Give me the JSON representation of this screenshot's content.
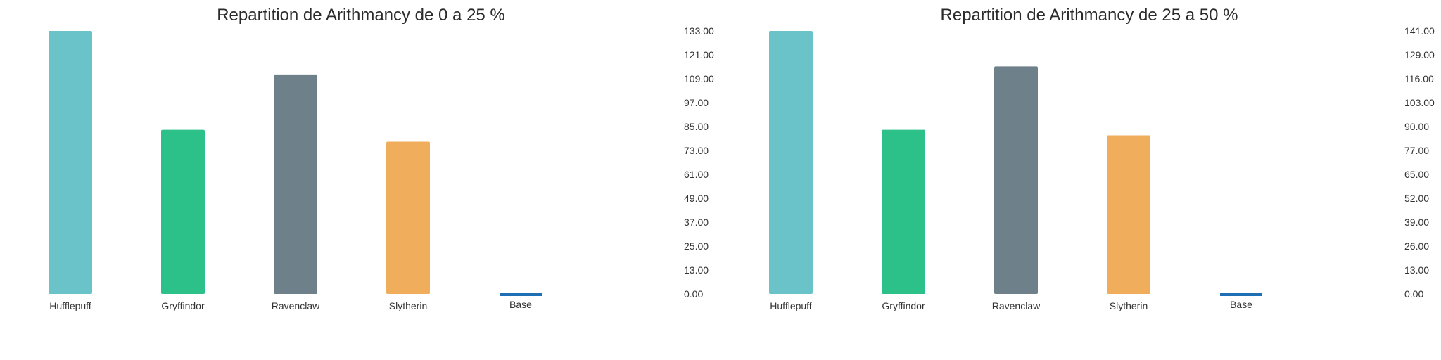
{
  "chart_data": [
    {
      "type": "bar",
      "title": "Repartition de Arithmancy de 0 a 25 %",
      "categories": [
        "Hufflepuff",
        "Gryffindor",
        "Ravenclaw",
        "Slytherin",
        "Base"
      ],
      "values": [
        133,
        83,
        111,
        77,
        0
      ],
      "colors": [
        "#69c3c9",
        "#2bc188",
        "#6e808a",
        "#f0ad5b",
        "#1f6fb5"
      ],
      "ylim": [
        0,
        133
      ],
      "y_ticks": [
        "0.00",
        "13.00",
        "25.00",
        "37.00",
        "49.00",
        "61.00",
        "73.00",
        "85.00",
        "97.00",
        "109.00",
        "121.00",
        "133.00"
      ],
      "y_axis_position": "right",
      "grid": false,
      "legend": false
    },
    {
      "type": "bar",
      "title": "Repartition de Arithmancy de 25 a 50 %",
      "categories": [
        "Hufflepuff",
        "Gryffindor",
        "Ravenclaw",
        "Slytherin",
        "Base"
      ],
      "values": [
        141,
        88,
        122,
        85,
        0
      ],
      "colors": [
        "#69c3c9",
        "#2bc188",
        "#6e808a",
        "#f0ad5b",
        "#1f6fb5"
      ],
      "ylim": [
        0,
        141
      ],
      "y_ticks": [
        "0.00",
        "13.00",
        "26.00",
        "39.00",
        "52.00",
        "65.00",
        "77.00",
        "90.00",
        "103.00",
        "116.00",
        "129.00",
        "141.00"
      ],
      "y_axis_position": "right",
      "grid": false,
      "legend": false
    }
  ]
}
